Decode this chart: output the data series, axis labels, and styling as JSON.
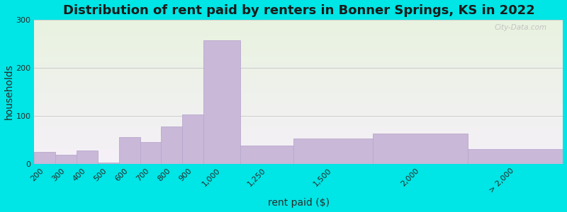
{
  "title": "Distribution of rent paid by renters in Bonner Springs, KS in 2022",
  "xlabel": "rent paid ($)",
  "ylabel": "households",
  "tick_labels": [
    "200",
    "300",
    "400",
    "500",
    "600",
    "700",
    "800",
    "900",
    "1,000",
    "1,250",
    "1,500",
    "2,000",
    "> 2,000"
  ],
  "values": [
    25,
    18,
    28,
    3,
    55,
    45,
    78,
    103,
    257,
    37,
    52,
    62,
    30
  ],
  "bin_edges": [
    150,
    250,
    350,
    450,
    550,
    650,
    750,
    850,
    950,
    1125,
    1375,
    1750,
    2200,
    2650
  ],
  "bar_color": "#c9b8d8",
  "bar_edge_color": "#b8a8cc",
  "background_outer": "#00e5e5",
  "grid_color": "#cccccc",
  "title_fontsize": 13,
  "axis_label_fontsize": 10,
  "tick_fontsize": 8,
  "ylim": [
    0,
    300
  ],
  "yticks": [
    0,
    100,
    200,
    300
  ],
  "watermark": "City-Data.com"
}
